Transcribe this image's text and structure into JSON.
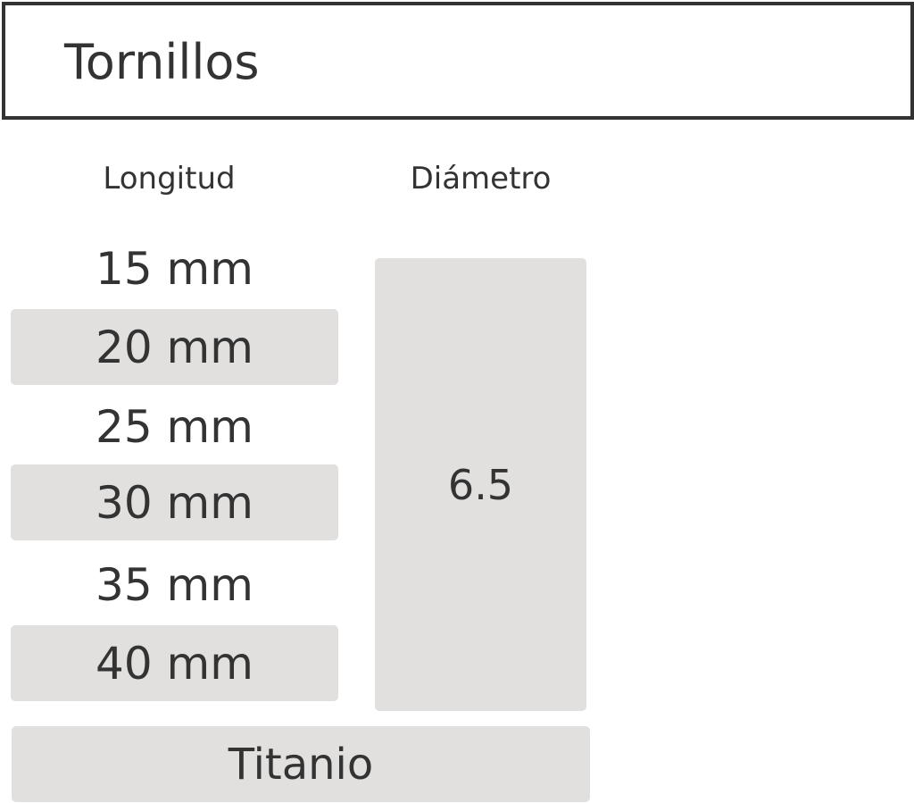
{
  "header": {
    "title": "Tornillos"
  },
  "columns": {
    "length_label": "Longitud",
    "diameter_label": "Diámetro"
  },
  "lengths": [
    {
      "label": "15 mm",
      "highlighted": false
    },
    {
      "label": "20 mm",
      "highlighted": true
    },
    {
      "label": "25 mm",
      "highlighted": false
    },
    {
      "label": "30 mm",
      "highlighted": true
    },
    {
      "label": "35 mm",
      "highlighted": false
    },
    {
      "label": "40 mm",
      "highlighted": true
    }
  ],
  "diameter": {
    "value": "6.5"
  },
  "material": {
    "label": "Titanio"
  },
  "colors": {
    "text": "#333333",
    "highlight": "#e1e0df",
    "border": "#333333"
  }
}
